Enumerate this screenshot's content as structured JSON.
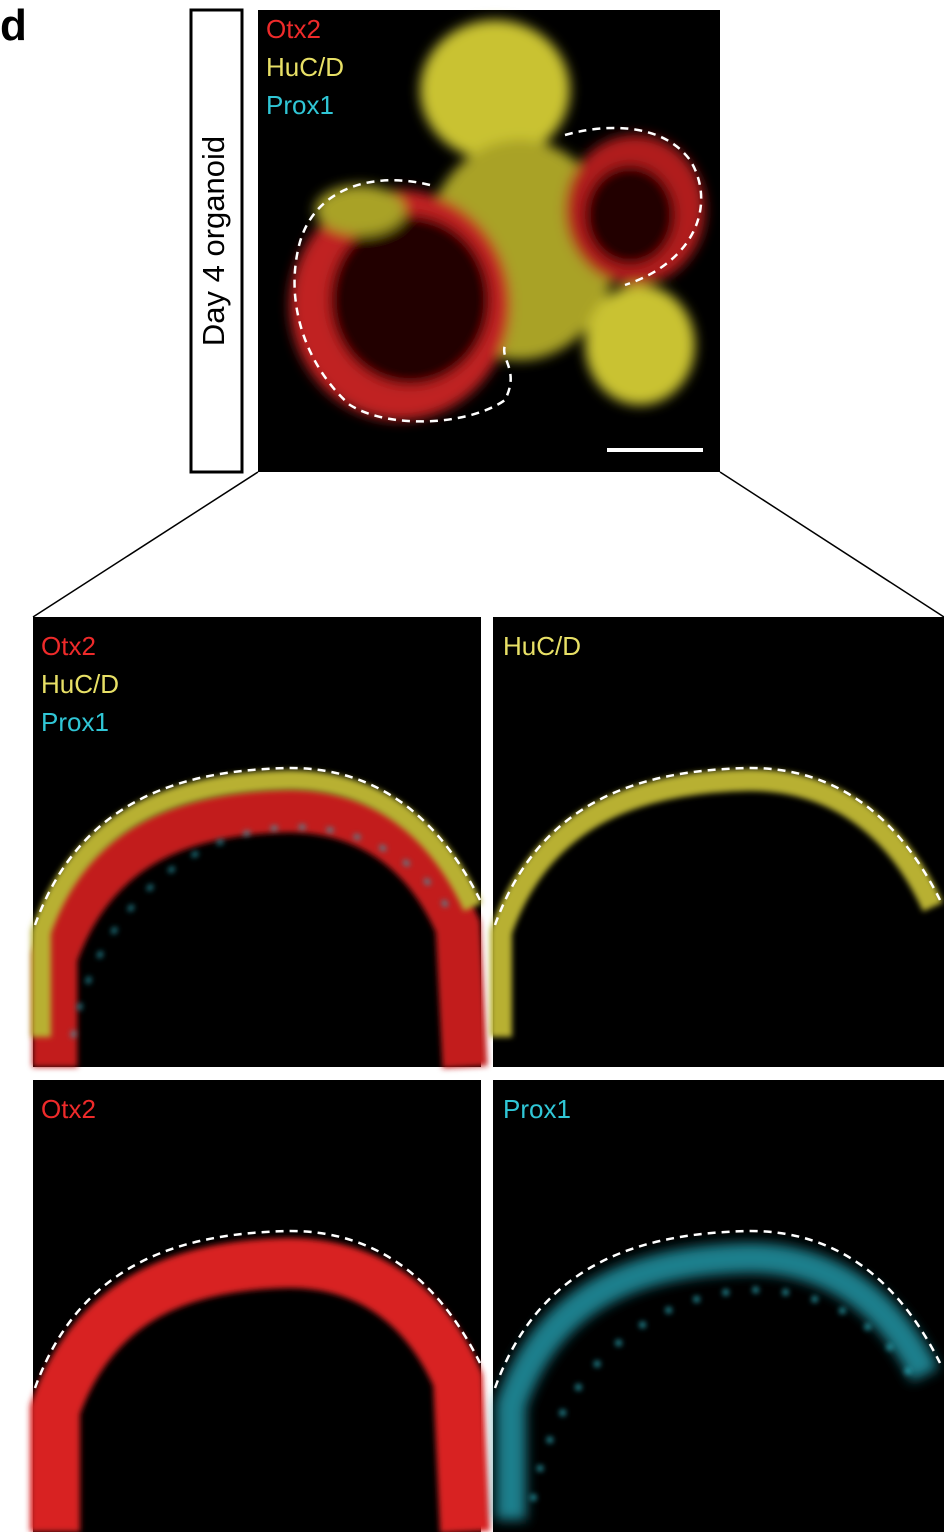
{
  "panel_label": "d",
  "side_label": "Day 4 organoid",
  "overview": {
    "legend": [
      "Otx2",
      "HuC/D",
      "Prox1"
    ]
  },
  "panels": [
    {
      "labels": [
        "Otx2",
        "HuC/D",
        "Prox1"
      ]
    },
    {
      "labels": [
        "HuC/D"
      ]
    },
    {
      "labels": [
        "Otx2"
      ]
    },
    {
      "labels": [
        "Prox1"
      ]
    }
  ]
}
